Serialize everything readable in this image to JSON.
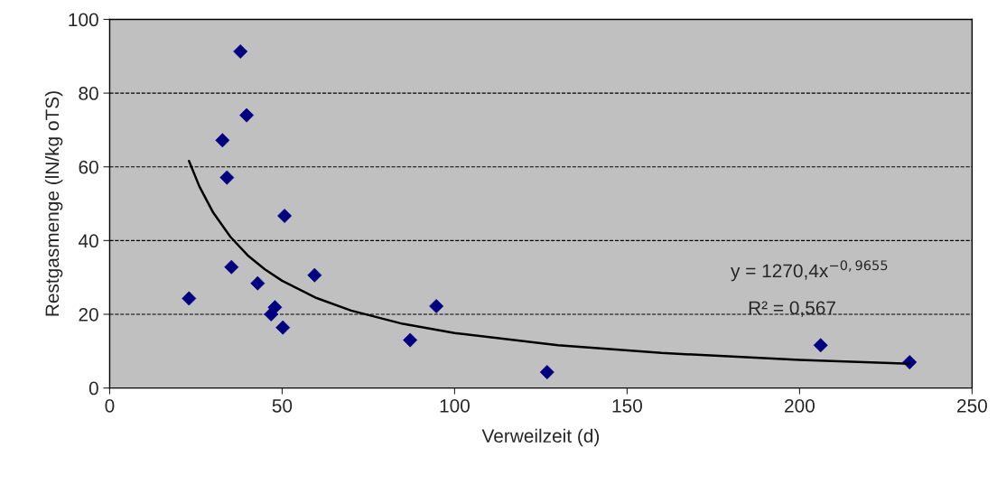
{
  "chart_data": {
    "type": "scatter",
    "xlabel": "Verweilzeit (d)",
    "ylabel": "Restgasmenge (lN/kg oTS)",
    "xlim": [
      0,
      250
    ],
    "xticks": [
      0,
      50,
      100,
      150,
      200,
      250
    ],
    "ylim": [
      0,
      100
    ],
    "yticks": [
      0,
      20,
      40,
      60,
      80,
      100
    ],
    "grid": "y",
    "legend": false,
    "series": [
      {
        "marker": "diamond",
        "color": "#000080",
        "x": [
          37.9,
          39.7,
          32.7,
          34.0,
          50.7,
          35.3,
          59.4,
          42.9,
          23.0,
          47.9,
          46.8,
          50.2,
          94.7,
          87.1,
          126.8,
          206.1,
          231.9
        ],
        "values": [
          91.3,
          74.0,
          67.2,
          57.1,
          46.7,
          32.8,
          30.6,
          28.4,
          24.3,
          21.9,
          20.0,
          16.4,
          22.2,
          13.0,
          4.3,
          11.6,
          7.0
        ]
      },
      {
        "type": "line",
        "marker": "none",
        "line_style": "solid",
        "color": "#000000",
        "x": [
          23,
          26,
          30,
          35,
          40,
          45,
          50,
          60,
          70,
          85,
          100,
          130,
          160,
          200,
          232
        ],
        "values": [
          61.6,
          54.7,
          47.6,
          41.0,
          36.0,
          32.2,
          29.1,
          24.4,
          21.0,
          17.4,
          14.9,
          11.6,
          9.5,
          7.6,
          6.6
        ]
      }
    ],
    "annotations": [
      "y = 1270,4x$^{−0,9655}$",
      "R² = 0,567"
    ]
  }
}
